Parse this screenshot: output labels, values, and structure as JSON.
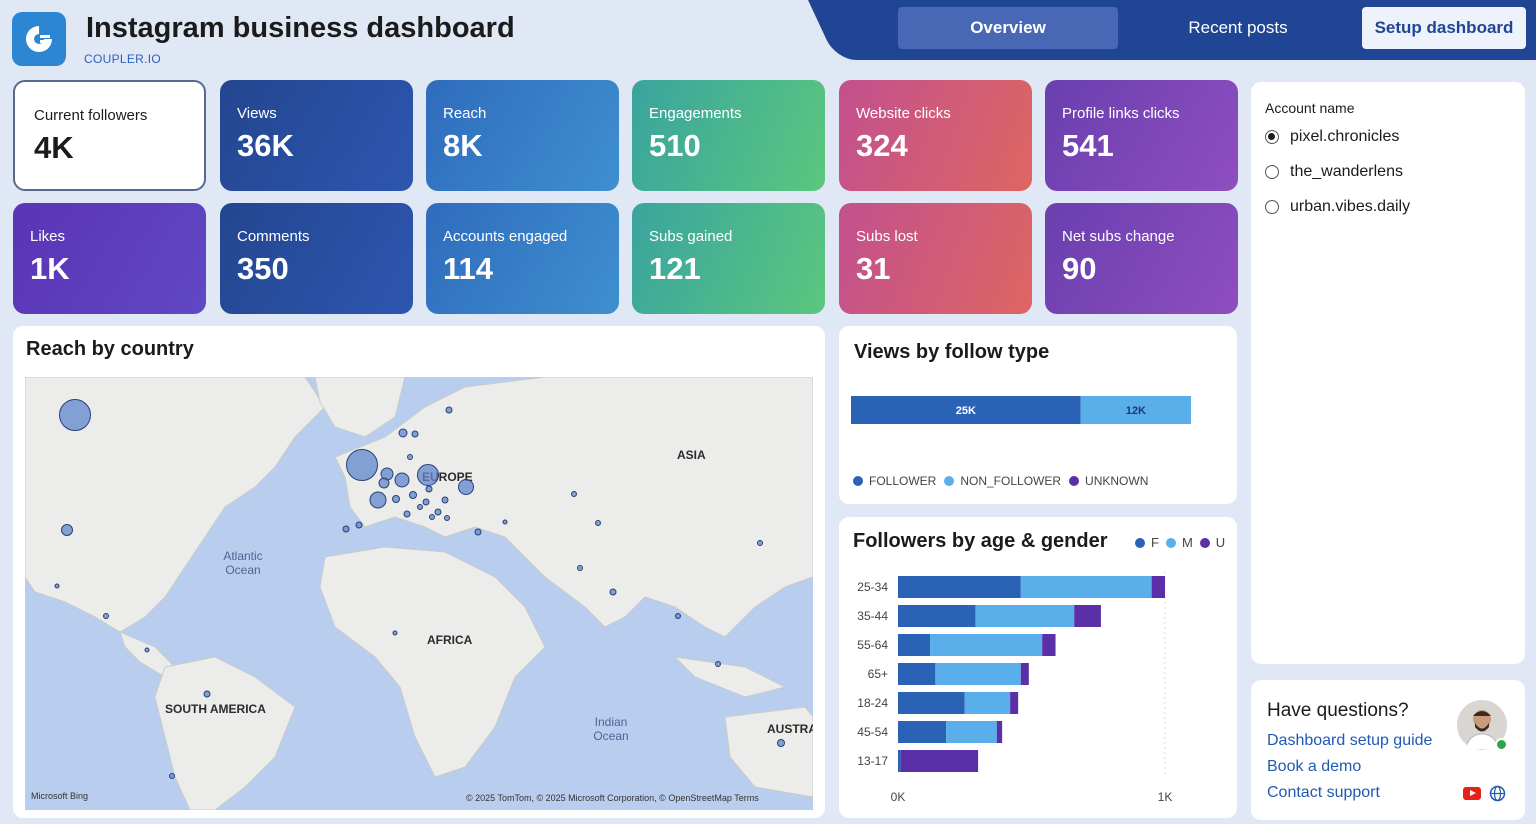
{
  "header": {
    "title": "Instagram business dashboard",
    "subtitle": "COUPLER.IO",
    "nav": {
      "overview": "Overview",
      "recent_posts": "Recent posts",
      "setup": "Setup dashboard"
    }
  },
  "kpis": [
    {
      "label": "Current followers",
      "value": "4K"
    },
    {
      "label": "Views",
      "value": "36K"
    },
    {
      "label": "Reach",
      "value": "8K"
    },
    {
      "label": "Engagements",
      "value": "510"
    },
    {
      "label": "Website clicks",
      "value": "324"
    },
    {
      "label": "Profile links clicks",
      "value": "541"
    },
    {
      "label": "Likes",
      "value": "1K"
    },
    {
      "label": "Comments",
      "value": "350"
    },
    {
      "label": "Accounts engaged",
      "value": "114"
    },
    {
      "label": "Subs gained",
      "value": "121"
    },
    {
      "label": "Subs lost",
      "value": "31"
    },
    {
      "label": "Net subs change",
      "value": "90"
    }
  ],
  "map": {
    "title": "Reach by country",
    "labels": {
      "asia": "ASIA",
      "europe": "EUROPE",
      "africa": "AFRICA",
      "south_america": "SOUTH AMERICA",
      "australia": "AUSTRA",
      "atlantic": "Atlantic Ocean",
      "indian": "Indian Ocean"
    },
    "credit": "© 2025 TomTom, © 2025 Microsoft Corporation, © OpenStreetMap  Terms",
    "brand": "Microsoft Bing"
  },
  "follow_type": {
    "title": "Views by follow type",
    "legend": [
      "FOLLOWER",
      "NON_FOLLOWER",
      "UNKNOWN"
    ],
    "colors": [
      "#2a62b5",
      "#5aaeea",
      "#5a2fa8"
    ],
    "chart_data": {
      "type": "bar",
      "orientation": "stacked-horizontal",
      "series": [
        {
          "name": "FOLLOWER",
          "values": [
            25000
          ]
        },
        {
          "name": "NON_FOLLOWER",
          "values": [
            12000
          ]
        },
        {
          "name": "UNKNOWN",
          "values": [
            0
          ]
        }
      ],
      "data_labels": [
        "25K",
        "12K"
      ]
    }
  },
  "age_gender": {
    "title": "Followers by age & gender",
    "legend": [
      "F",
      "M",
      "U"
    ],
    "colors": [
      "#2a62b5",
      "#5aaeea",
      "#5a2fa8"
    ],
    "xticks": [
      "0K",
      "1K"
    ],
    "chart_data": {
      "type": "bar",
      "orientation": "stacked-horizontal",
      "categories": [
        "25-34",
        "35-44",
        "55-64",
        "65+",
        "18-24",
        "45-54",
        "13-17"
      ],
      "series": [
        {
          "name": "F",
          "values": [
            460,
            290,
            120,
            140,
            250,
            180,
            10
          ]
        },
        {
          "name": "M",
          "values": [
            490,
            370,
            420,
            320,
            170,
            190,
            0
          ]
        },
        {
          "name": "U",
          "values": [
            50,
            100,
            50,
            30,
            30,
            20,
            290
          ]
        }
      ],
      "xlim": [
        0,
        1000
      ]
    }
  },
  "accounts": {
    "label": "Account name",
    "items": [
      "pixel.chronicles",
      "the_wanderlens",
      "urban.vibes.daily"
    ],
    "selected": 0
  },
  "help": {
    "title": "Have questions?",
    "links": [
      "Dashboard setup guide",
      "Book a demo",
      "Contact support"
    ]
  }
}
